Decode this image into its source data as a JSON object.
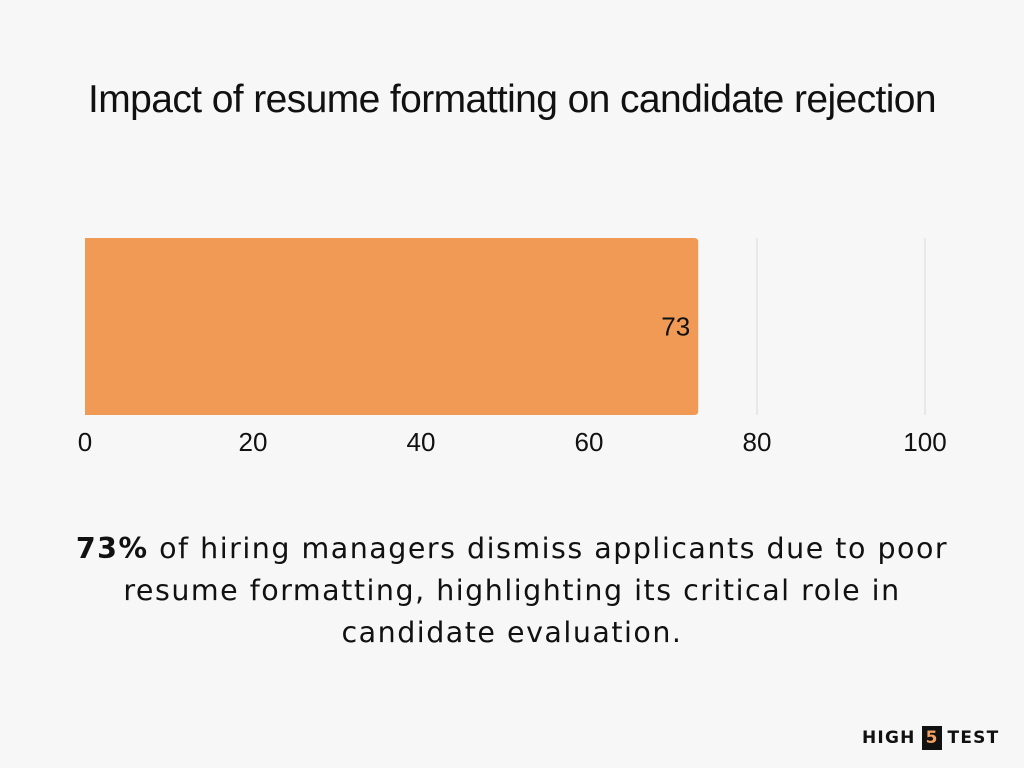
{
  "chart_data": {
    "type": "bar",
    "orientation": "horizontal",
    "title": "Impact of resume formatting on candidate rejection",
    "categories": [
      ""
    ],
    "values": [
      73
    ],
    "data_labels": [
      "73"
    ],
    "xlim": [
      0,
      100
    ],
    "x_ticks": [
      "0",
      "20",
      "40",
      "60",
      "80",
      "100"
    ],
    "grid": true,
    "bar_color": "#f09a56",
    "grid_color": "#d9d9d9"
  },
  "caption": {
    "bold": "73%",
    "text": " of hiring managers dismiss applicants due to poor resume formatting, highlighting its critical role in candidate evaluation."
  },
  "logo": {
    "left": "HIGH",
    "box": "5",
    "right": "TEST"
  }
}
